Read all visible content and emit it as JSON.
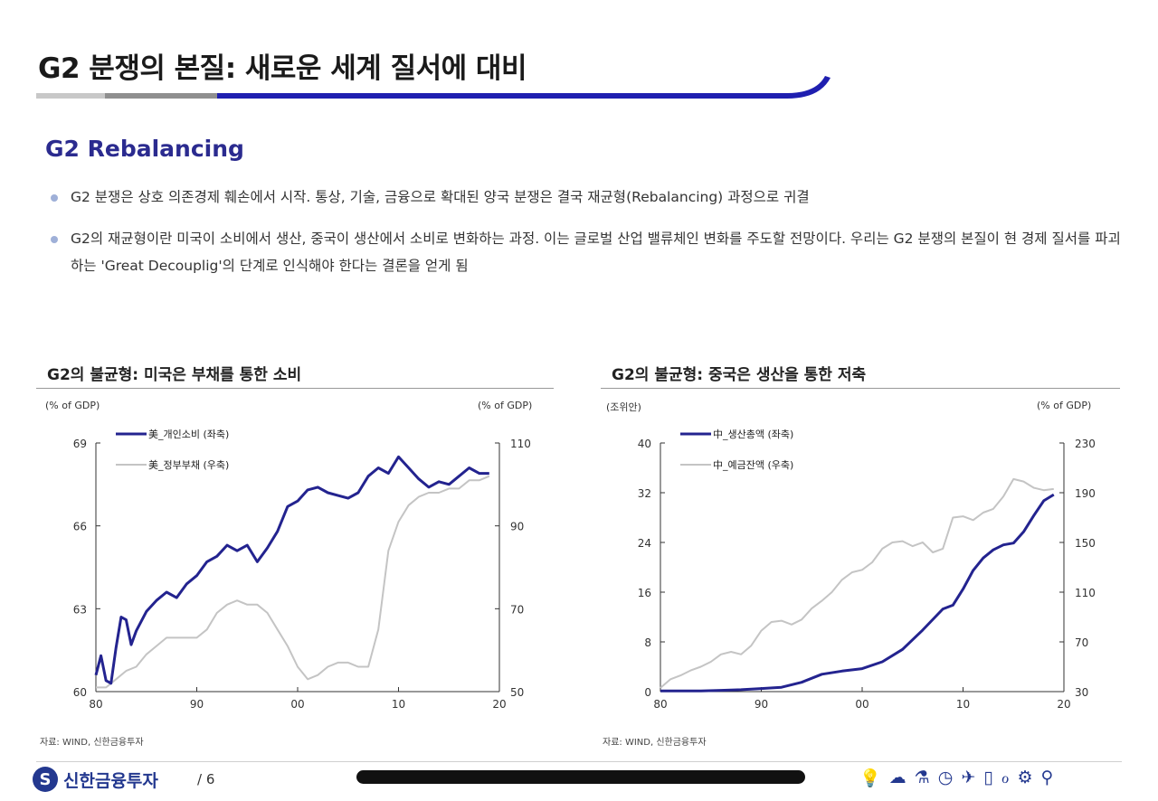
{
  "title": "G2 분쟁의 본질: 새로운 세계 질서에 대비",
  "subtitle": "G2 Rebalancing",
  "bullets": [
    "G2 분쟁은 상호 의존경제 훼손에서 시작. 통상, 기술, 금융으로 확대된 양국 분쟁은 결국 재균형(Rebalancing) 과정으로 귀결",
    "G2의 재균형이란 미국이 소비에서 생산, 중국이 생산에서 소비로 변화하는 과정. 이는 글로벌 산업 밸류체인 변화를 주도할 전망이다. 우리는 G2 분쟁의 본질이 현 경제 질서를 파괴하는 'Great Decouplig'의 단계로 인식해야 한다는 결론을 얻게 됨"
  ],
  "colors": {
    "primary": "#23238f",
    "secondary": "#c4c4c4",
    "accent_rule": "#1f1fb0"
  },
  "footer": {
    "brand": "신한금융투자",
    "page": "/ 6",
    "icons": [
      "bulb-icon",
      "cloud-icon",
      "flask-icon",
      "clock-icon",
      "plane-icon",
      "phone-icon",
      "stethoscope-icon",
      "gear-icon",
      "bike-icon"
    ]
  },
  "chart_data": [
    {
      "type": "line",
      "title": "G2의 불균형: 미국은 부채를 통한 소비",
      "left_unit": "(% of GDP)",
      "right_unit": "(% of GDP)",
      "source": "자료: WIND, 신한금융투자",
      "x_ticks": [
        "80",
        "90",
        "00",
        "10",
        "20"
      ],
      "x_tick_values": [
        1980,
        1990,
        2000,
        2010,
        2020
      ],
      "xlim": [
        1980,
        2020
      ],
      "ylim_left": [
        60,
        69
      ],
      "yticks_left": [
        60,
        63,
        66,
        69
      ],
      "ylim_right": [
        50,
        110
      ],
      "yticks_right": [
        50,
        70,
        90,
        110
      ],
      "series": [
        {
          "name": "美_개인소비 (좌축)",
          "axis": "left",
          "color": "#23238f",
          "x": [
            1980,
            1980.5,
            1981,
            1981.5,
            1982,
            1982.5,
            1983,
            1983.5,
            1984,
            1985,
            1986,
            1987,
            1988,
            1989,
            1990,
            1991,
            1992,
            1993,
            1994,
            1995,
            1996,
            1997,
            1998,
            1999,
            2000,
            2001,
            2002,
            2003,
            2004,
            2005,
            2006,
            2007,
            2008,
            2009,
            2010,
            2011,
            2012,
            2013,
            2014,
            2015,
            2016,
            2017,
            2018,
            2019
          ],
          "values": [
            60.6,
            61.3,
            60.4,
            60.3,
            61.6,
            62.7,
            62.6,
            61.7,
            62.2,
            62.9,
            63.3,
            63.6,
            63.4,
            63.9,
            64.2,
            64.7,
            64.9,
            65.3,
            65.1,
            65.3,
            64.7,
            65.2,
            65.8,
            66.7,
            66.9,
            67.3,
            67.4,
            67.2,
            67.1,
            67.0,
            67.2,
            67.8,
            68.1,
            67.9,
            68.5,
            68.1,
            67.7,
            67.4,
            67.6,
            67.5,
            67.8,
            68.1,
            67.9,
            67.9
          ]
        },
        {
          "name": "美_정부부채 (우축)",
          "axis": "right",
          "color": "#c4c4c4",
          "x": [
            1980,
            1981,
            1982,
            1983,
            1984,
            1985,
            1986,
            1987,
            1988,
            1989,
            1990,
            1991,
            1992,
            1993,
            1994,
            1995,
            1996,
            1997,
            1998,
            1999,
            2000,
            2001,
            2002,
            2003,
            2004,
            2005,
            2006,
            2007,
            2008,
            2009,
            2010,
            2011,
            2012,
            2013,
            2014,
            2015,
            2016,
            2017,
            2018,
            2019
          ],
          "values": [
            51,
            51,
            53,
            55,
            56,
            59,
            61,
            63,
            63,
            63,
            63,
            65,
            69,
            71,
            72,
            71,
            71,
            69,
            65,
            61,
            56,
            53,
            54,
            56,
            57,
            57,
            56,
            56,
            65,
            84,
            91,
            95,
            97,
            98,
            98,
            99,
            99,
            101,
            101,
            102
          ]
        }
      ]
    },
    {
      "type": "line",
      "title": "G2의 불균형: 중국은 생산을 통한 저축",
      "left_unit": "(조위안)",
      "right_unit": "(% of GDP)",
      "source": "자료: WIND, 신한금융투자",
      "x_ticks": [
        "80",
        "90",
        "00",
        "10",
        "20"
      ],
      "x_tick_values": [
        1980,
        1990,
        2000,
        2010,
        2020
      ],
      "xlim": [
        1980,
        2020
      ],
      "ylim_left": [
        0,
        40
      ],
      "yticks_left": [
        0,
        8,
        16,
        24,
        32,
        40
      ],
      "ylim_right": [
        30,
        230
      ],
      "yticks_right": [
        30,
        70,
        110,
        150,
        190,
        230
      ],
      "series": [
        {
          "name": "中_생산총액 (좌축)",
          "axis": "left",
          "color": "#23238f",
          "x": [
            1980,
            1982,
            1984,
            1986,
            1988,
            1990,
            1992,
            1994,
            1996,
            1998,
            2000,
            2002,
            2004,
            2006,
            2008,
            2009,
            2010,
            2011,
            2012,
            2013,
            2014,
            2015,
            2016,
            2017,
            2018,
            2019
          ],
          "values": [
            0.1,
            0.1,
            0.1,
            0.2,
            0.3,
            0.5,
            0.7,
            1.5,
            2.8,
            3.3,
            3.7,
            4.8,
            6.8,
            9.9,
            13.3,
            13.9,
            16.5,
            19.5,
            21.5,
            22.8,
            23.6,
            23.9,
            25.7,
            28.3,
            30.7,
            31.7
          ]
        },
        {
          "name": "中_예금잔액 (우축)",
          "axis": "right",
          "color": "#c4c4c4",
          "x": [
            1980,
            1981,
            1982,
            1983,
            1984,
            1985,
            1986,
            1987,
            1988,
            1989,
            1990,
            1991,
            1992,
            1993,
            1994,
            1995,
            1996,
            1997,
            1998,
            1999,
            2000,
            2001,
            2002,
            2003,
            2004,
            2005,
            2006,
            2007,
            2008,
            2009,
            2010,
            2011,
            2012,
            2013,
            2014,
            2015,
            2016,
            2017,
            2018,
            2019
          ],
          "values": [
            33,
            40,
            43,
            47,
            50,
            54,
            60,
            62,
            60,
            67,
            79,
            86,
            87,
            84,
            88,
            97,
            103,
            110,
            120,
            126,
            128,
            134,
            145,
            150,
            151,
            147,
            150,
            142,
            145,
            170,
            171,
            168,
            174,
            177,
            187,
            201,
            199,
            194,
            192,
            193
          ]
        }
      ]
    }
  ]
}
